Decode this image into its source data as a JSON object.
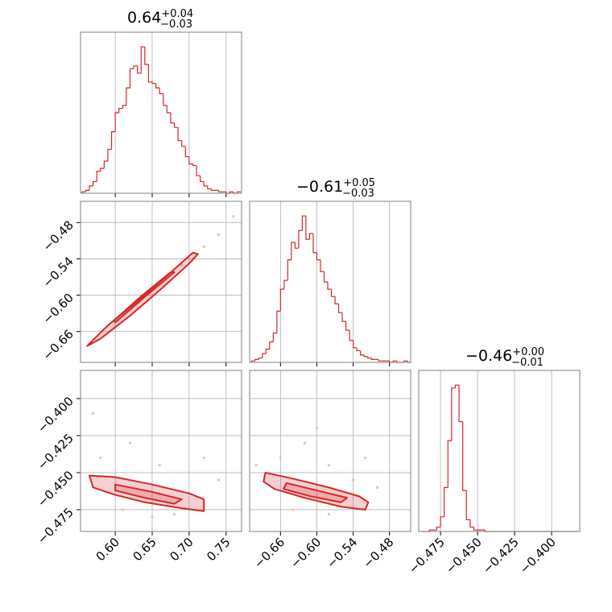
{
  "chart_data": {
    "type": "corner",
    "color": "#d62728",
    "point_color": "#f4b8b8",
    "grid": true,
    "params": [
      {
        "title": "0.64",
        "upper": "+0.04",
        "lower": "−0.03",
        "lim": [
          0.553,
          0.771
        ],
        "ticks": [
          {
            "value": 0.6,
            "label": "0.60"
          },
          {
            "value": 0.65,
            "label": "0.65"
          },
          {
            "value": 0.7,
            "label": "0.70"
          },
          {
            "value": 0.75,
            "label": "0.75"
          }
        ],
        "ylim": [
          0,
          110
        ],
        "bins": [
          0.555,
          0.56,
          0.565,
          0.57,
          0.575,
          0.58,
          0.585,
          0.59,
          0.595,
          0.6,
          0.605,
          0.61,
          0.615,
          0.62,
          0.625,
          0.63,
          0.635,
          0.64,
          0.645,
          0.65,
          0.655,
          0.66,
          0.665,
          0.67,
          0.675,
          0.68,
          0.685,
          0.69,
          0.695,
          0.7,
          0.705,
          0.71,
          0.715,
          0.72,
          0.725,
          0.73,
          0.735,
          0.74,
          0.745,
          0.75,
          0.755,
          0.76,
          0.765,
          0.77
        ],
        "counts": [
          1,
          2,
          5,
          8,
          15,
          17,
          22,
          30,
          42,
          55,
          58,
          60,
          72,
          85,
          87,
          82,
          100,
          88,
          76,
          75,
          72,
          68,
          60,
          55,
          48,
          45,
          36,
          32,
          25,
          20,
          19,
          12,
          8,
          5,
          3,
          2,
          2,
          1,
          1,
          0,
          1,
          0,
          1
        ]
      },
      {
        "title": "−0.61",
        "upper": "+0.05",
        "lower": "−0.03",
        "lim": [
          -0.711,
          -0.445
        ],
        "ticks": [
          {
            "value": -0.66,
            "label": "−0.66"
          },
          {
            "value": -0.6,
            "label": "−0.60"
          },
          {
            "value": -0.54,
            "label": "−0.54"
          },
          {
            "value": -0.48,
            "label": "−0.48"
          }
        ],
        "ylim": [
          0,
          110
        ],
        "bins": [
          -0.708,
          -0.702,
          -0.696,
          -0.69,
          -0.684,
          -0.678,
          -0.672,
          -0.666,
          -0.66,
          -0.654,
          -0.648,
          -0.642,
          -0.636,
          -0.63,
          -0.624,
          -0.618,
          -0.612,
          -0.606,
          -0.6,
          -0.594,
          -0.588,
          -0.582,
          -0.576,
          -0.57,
          -0.564,
          -0.558,
          -0.552,
          -0.546,
          -0.54,
          -0.534,
          -0.528,
          -0.522,
          -0.516,
          -0.51,
          -0.504,
          -0.498,
          -0.492,
          -0.486,
          -0.48,
          -0.474,
          -0.468,
          -0.462,
          -0.456,
          -0.45,
          -0.444
        ],
        "counts": [
          1,
          2,
          3,
          6,
          9,
          14,
          20,
          35,
          50,
          56,
          70,
          82,
          78,
          90,
          100,
          84,
          88,
          75,
          70,
          62,
          55,
          50,
          45,
          40,
          34,
          28,
          22,
          15,
          10,
          8,
          5,
          4,
          3,
          2,
          2,
          1,
          1,
          1,
          0,
          1,
          0,
          0,
          1,
          0
        ]
      },
      {
        "title": "−0.46",
        "upper": "+0.00",
        "lower": "−0.01",
        "lim": [
          -0.4897,
          -0.381
        ],
        "ticks": [
          {
            "value": -0.475,
            "label": "−0.475"
          },
          {
            "value": -0.45,
            "label": "−0.450"
          },
          {
            "value": -0.425,
            "label": "−0.425"
          },
          {
            "value": -0.4,
            "label": "−0.400"
          }
        ],
        "ylim": [
          0,
          110
        ],
        "bins": [
          -0.4875,
          -0.485,
          -0.4825,
          -0.48,
          -0.4775,
          -0.475,
          -0.4725,
          -0.47,
          -0.4675,
          -0.465,
          -0.4625,
          -0.46,
          -0.4575,
          -0.455,
          -0.4525,
          -0.45,
          -0.4475,
          -0.445,
          -0.4425,
          -0.44,
          -0.4375,
          -0.435,
          -0.4325,
          -0.43,
          -0.4275,
          -0.425,
          -0.4225,
          -0.42,
          -0.4175,
          -0.415,
          -0.4125,
          -0.41,
          -0.4075,
          -0.405,
          -0.4025,
          -0.4,
          -0.3975,
          -0.395,
          -0.3925,
          -0.39,
          -0.3875,
          -0.385,
          -0.3825
        ],
        "counts": [
          0,
          0,
          1,
          1,
          3,
          10,
          30,
          62,
          98,
          100,
          75,
          28,
          8,
          3,
          1,
          1,
          1,
          0,
          0,
          0,
          0,
          0,
          0,
          0,
          0,
          0,
          0,
          0,
          0,
          0,
          0,
          0,
          0,
          0,
          0,
          0,
          0,
          0,
          0,
          0,
          0,
          0
        ]
      }
    ],
    "pairs": [
      {
        "points": {
          "x": [
            0.58,
            0.62,
            0.69,
            0.72,
            0.74,
            0.76,
            0.65,
            0.6,
            0.575,
            0.705
          ],
          "y": [
            -0.66,
            -0.62,
            -0.55,
            -0.52,
            -0.5,
            -0.47,
            -0.6,
            -0.64,
            -0.675,
            -0.54
          ]
        },
        "contours": [
          {
            "x": [
              0.562,
              0.58,
              0.62,
              0.66,
              0.7,
              0.712,
              0.705,
              0.67,
              0.63,
              0.59,
              0.565
            ],
            "y": [
              -0.684,
              -0.672,
              -0.634,
              -0.592,
              -0.548,
              -0.532,
              -0.53,
              -0.568,
              -0.61,
              -0.65,
              -0.68
            ]
          },
          {
            "x": [
              0.6,
              0.64,
              0.68,
              0.675,
              0.635,
              0.598
            ],
            "y": [
              -0.645,
              -0.603,
              -0.562,
              -0.562,
              -0.602,
              -0.642
            ]
          }
        ]
      },
      {
        "points": {
          "x": [
            0.58,
            0.62,
            0.66,
            0.7,
            0.72,
            0.68,
            0.61,
            0.65,
            0.74,
            0.57
          ],
          "y": [
            -0.44,
            -0.43,
            -0.445,
            -0.45,
            -0.44,
            -0.478,
            -0.475,
            -0.48,
            -0.455,
            -0.41
          ]
        },
        "contours": [
          {
            "x": [
              0.565,
              0.6,
              0.65,
              0.7,
              0.72,
              0.72,
              0.69,
              0.64,
              0.6,
              0.57
            ],
            "y": [
              -0.452,
              -0.453,
              -0.458,
              -0.464,
              -0.468,
              -0.476,
              -0.474,
              -0.47,
              -0.465,
              -0.46
            ]
          },
          {
            "x": [
              0.6,
              0.65,
              0.69,
              0.68,
              0.64,
              0.6
            ],
            "y": [
              -0.458,
              -0.463,
              -0.468,
              -0.471,
              -0.467,
              -0.462
            ]
          }
        ]
      },
      {
        "points": {
          "x": [
            -0.66,
            -0.62,
            -0.58,
            -0.54,
            -0.5,
            -0.64,
            -0.58,
            -0.7,
            -0.52,
            -0.6
          ],
          "y": [
            -0.44,
            -0.43,
            -0.445,
            -0.455,
            -0.46,
            -0.475,
            -0.478,
            -0.445,
            -0.44,
            -0.42
          ]
        },
        "contours": [
          {
            "x": [
              -0.685,
              -0.64,
              -0.58,
              -0.53,
              -0.515,
              -0.52,
              -0.56,
              -0.62,
              -0.67,
              -0.688
            ],
            "y": [
              -0.45,
              -0.454,
              -0.46,
              -0.466,
              -0.47,
              -0.475,
              -0.473,
              -0.467,
              -0.461,
              -0.456
            ]
          },
          {
            "x": [
              -0.65,
              -0.6,
              -0.55,
              -0.56,
              -0.61,
              -0.655
            ],
            "y": [
              -0.457,
              -0.462,
              -0.467,
              -0.47,
              -0.466,
              -0.461
            ]
          }
        ]
      }
    ]
  }
}
